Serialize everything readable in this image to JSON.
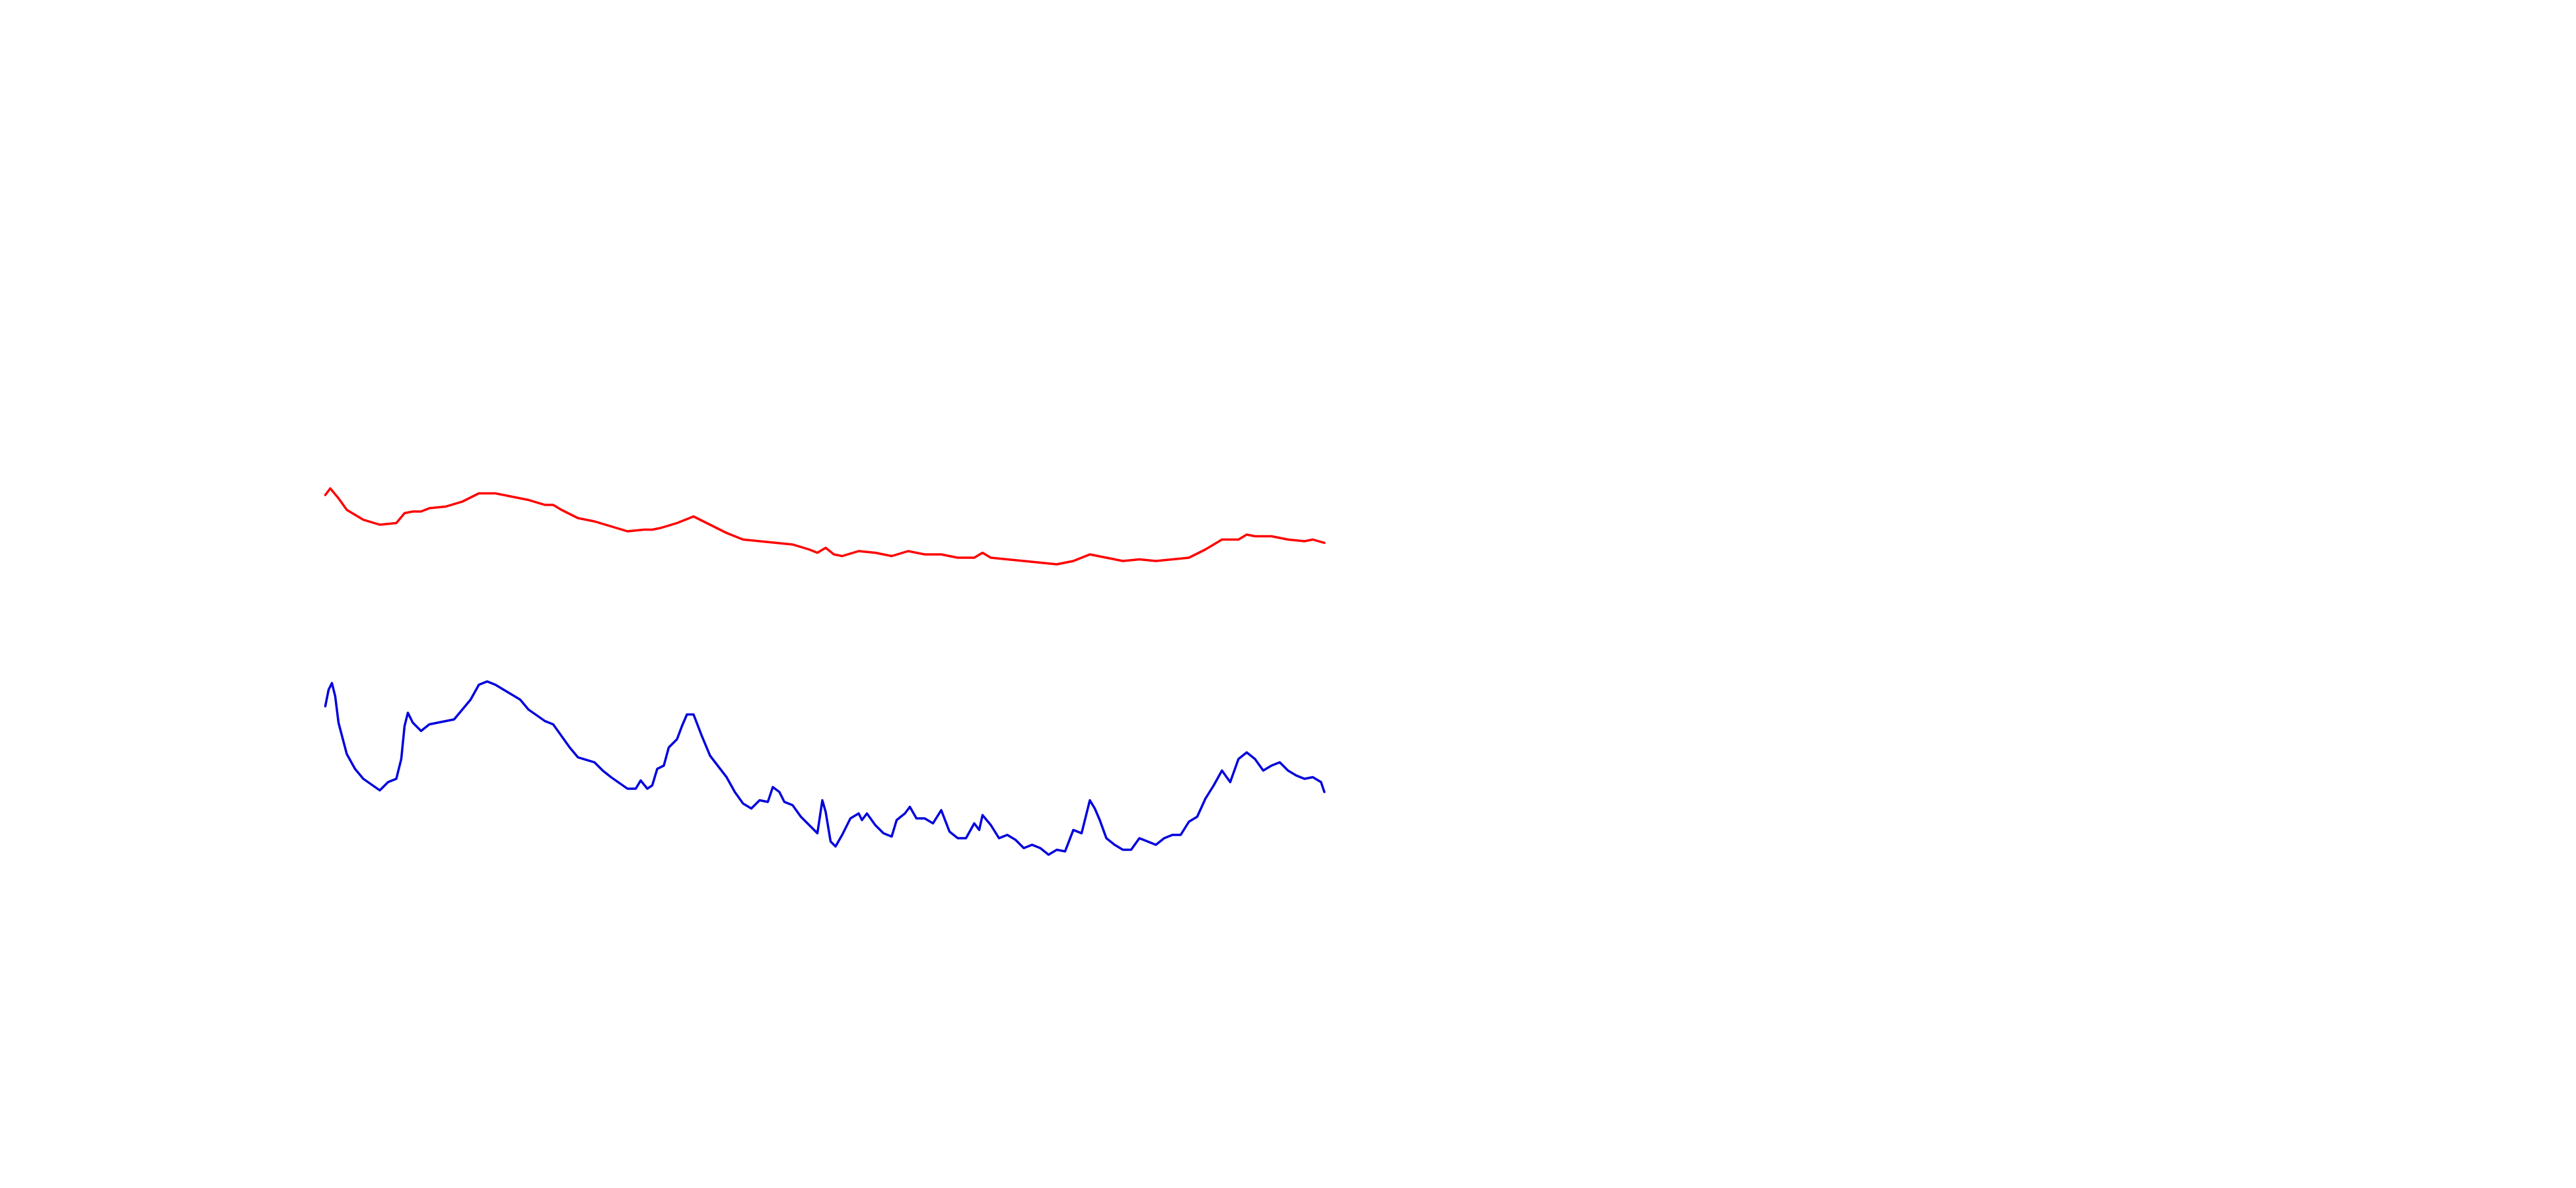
{
  "chart_data": {
    "type": "line",
    "xlim": [
      0,
      1560
    ],
    "ylim": [
      0,
      720
    ],
    "series": [
      {
        "color": "#ff0000",
        "x": [
          197,
          200,
          205,
          210,
          220,
          230,
          240,
          245,
          250,
          255,
          260,
          270,
          280,
          290,
          300,
          310,
          320,
          330,
          335,
          340,
          350,
          360,
          370,
          380,
          390,
          395,
          400,
          410,
          420,
          430,
          440,
          450,
          460,
          470,
          480,
          490,
          495,
          500,
          505,
          510,
          520,
          530,
          540,
          550,
          560,
          570,
          580,
          590,
          595,
          600,
          610,
          620,
          630,
          640,
          650,
          660,
          670,
          680,
          690,
          700,
          710,
          720,
          730,
          740,
          750,
          755,
          760,
          770,
          780,
          790,
          795,
          802
        ],
        "values": [
          420,
          424,
          418,
          411,
          405,
          402,
          403,
          409,
          410,
          410,
          412,
          413,
          416,
          421,
          421,
          419,
          417,
          414,
          414,
          411,
          406,
          404,
          401,
          398,
          399,
          399,
          400,
          403,
          407,
          402,
          397,
          393,
          392,
          391,
          390,
          387,
          385,
          388,
          384,
          383,
          386,
          385,
          383,
          386,
          384,
          384,
          382,
          382,
          385,
          382,
          381,
          380,
          379,
          378,
          380,
          384,
          382,
          380,
          381,
          380,
          381,
          382,
          387,
          393,
          393,
          396,
          395,
          395,
          393,
          392,
          393,
          391
        ]
      },
      {
        "color": "#0000dd",
        "x": [
          197,
          199,
          201,
          203,
          205,
          210,
          215,
          220,
          230,
          235,
          240,
          243,
          245,
          247,
          250,
          255,
          260,
          270,
          275,
          280,
          285,
          290,
          295,
          300,
          310,
          315,
          320,
          330,
          335,
          340,
          345,
          350,
          360,
          365,
          370,
          380,
          385,
          388,
          392,
          395,
          398,
          402,
          405,
          410,
          413,
          416,
          420,
          425,
          430,
          440,
          445,
          450,
          455,
          460,
          465,
          468,
          472,
          475,
          480,
          485,
          490,
          495,
          498,
          500,
          503,
          506,
          510,
          515,
          520,
          522,
          525,
          530,
          535,
          540,
          543,
          548,
          551,
          555,
          560,
          565,
          570,
          575,
          580,
          585,
          590,
          593,
          595,
          600,
          605,
          610,
          615,
          620,
          625,
          630,
          635,
          640,
          645,
          650,
          655,
          660,
          663,
          666,
          670,
          675,
          680,
          685,
          690,
          695,
          700,
          705,
          710,
          715,
          720,
          725,
          730,
          735,
          740,
          745,
          750,
          755,
          760,
          765,
          770,
          775,
          780,
          785,
          790,
          795,
          800,
          802
        ],
        "values": [
          292,
          302,
          306,
          298,
          282,
          263,
          254,
          248,
          241,
          246,
          248,
          260,
          280,
          288,
          282,
          277,
          281,
          283,
          284,
          290,
          296,
          305,
          307,
          305,
          299,
          296,
          290,
          283,
          281,
          274,
          267,
          261,
          258,
          253,
          249,
          242,
          242,
          247,
          242,
          244,
          254,
          256,
          267,
          272,
          280,
          287,
          287,
          274,
          262,
          249,
          240,
          233,
          230,
          235,
          234,
          243,
          240,
          234,
          232,
          225,
          220,
          215,
          235,
          228,
          210,
          207,
          214,
          224,
          227,
          223,
          227,
          220,
          215,
          213,
          223,
          227,
          231,
          224,
          224,
          221,
          229,
          216,
          212,
          212,
          221,
          217,
          226,
          220,
          212,
          214,
          211,
          206,
          208,
          206,
          202,
          205,
          204,
          217,
          215,
          235,
          230,
          223,
          212,
          208,
          205,
          205,
          212,
          210,
          208,
          212,
          214,
          214,
          222,
          225,
          236,
          244,
          253,
          246,
          260,
          264,
          260,
          253,
          256,
          258,
          253,
          250,
          248,
          249,
          246,
          240
        ]
      }
    ]
  }
}
